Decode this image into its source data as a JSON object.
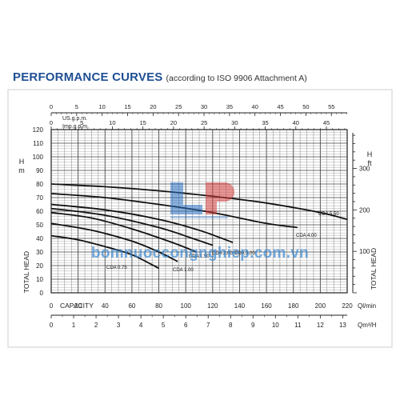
{
  "title": {
    "main": "PERFORMANCE CURVES",
    "sub": "(according to ISO 9906 Attachment A)"
  },
  "watermark": "bomnuoccongnghiep.com.vn",
  "colors": {
    "title": "#1f4f94",
    "curve": "#111111",
    "grid": "#555555",
    "watermark": "#3a89d1",
    "logo_blue": "#2a6fc2",
    "logo_red": "#d43c3c"
  },
  "chart_data": {
    "type": "line",
    "title": "",
    "left_axis": {
      "label": "TOTAL HEAD",
      "unit": "H m",
      "ticks": [
        0,
        10,
        20,
        30,
        40,
        50,
        60,
        70,
        80,
        90,
        100,
        110,
        120
      ],
      "ylim": [
        0,
        120
      ]
    },
    "right_axis": {
      "label": "TOTAL HEAD",
      "unit": "H ft",
      "ticks": [
        100,
        200,
        300
      ]
    },
    "x_axes": [
      {
        "label": "US.g.p.m.",
        "ticks": [
          0,
          5,
          10,
          15,
          20,
          25,
          30,
          35,
          40,
          45,
          50,
          55
        ],
        "max": 58.1
      },
      {
        "label": "Imp.g.p.m.",
        "ticks": [
          0,
          5,
          10,
          15,
          20,
          25,
          30,
          35,
          40,
          45
        ],
        "max": 48.4
      },
      {
        "label": "CAPACITY",
        "unit": "Ql/min",
        "ticks": [
          0,
          20,
          40,
          60,
          80,
          100,
          120,
          140,
          160,
          180,
          200,
          220
        ],
        "max": 220
      },
      {
        "label": "",
        "unit": "Qm³/H",
        "ticks": [
          0,
          1,
          2,
          3,
          4,
          5,
          6,
          7,
          8,
          9,
          10,
          11,
          12,
          13
        ],
        "max": 13.2
      }
    ],
    "grid": true,
    "x_unit": "l/min",
    "series": [
      {
        "name": "CDA 5.50",
        "x": [
          0,
          40,
          80,
          120,
          160,
          200,
          220
        ],
        "y": [
          80,
          78,
          75,
          71,
          66,
          59,
          54
        ]
      },
      {
        "name": "CDA 4.00",
        "x": [
          0,
          40,
          80,
          120,
          160,
          183
        ],
        "y": [
          73,
          70,
          65,
          59,
          51,
          48
        ]
      },
      {
        "name": "CDA 3.00",
        "x": [
          0,
          40,
          80,
          110,
          135
        ],
        "y": [
          65,
          61,
          54,
          46,
          37
        ]
      },
      {
        "name": "CDA 2.00",
        "x": [
          0,
          40,
          80,
          105,
          120
        ],
        "y": [
          62,
          57,
          48,
          40,
          35
        ]
      },
      {
        "name": "CDA 1.50",
        "x": [
          0,
          30,
          60,
          90,
          108
        ],
        "y": [
          59,
          55,
          47,
          37,
          30
        ]
      },
      {
        "name": "CDA 1.00",
        "x": [
          0,
          30,
          60,
          80,
          94
        ],
        "y": [
          51,
          46,
          38,
          30,
          23
        ]
      },
      {
        "name": "CDA 0.75",
        "x": [
          0,
          20,
          40,
          60,
          80
        ],
        "y": [
          42,
          39,
          34,
          28,
          18
        ]
      }
    ]
  }
}
